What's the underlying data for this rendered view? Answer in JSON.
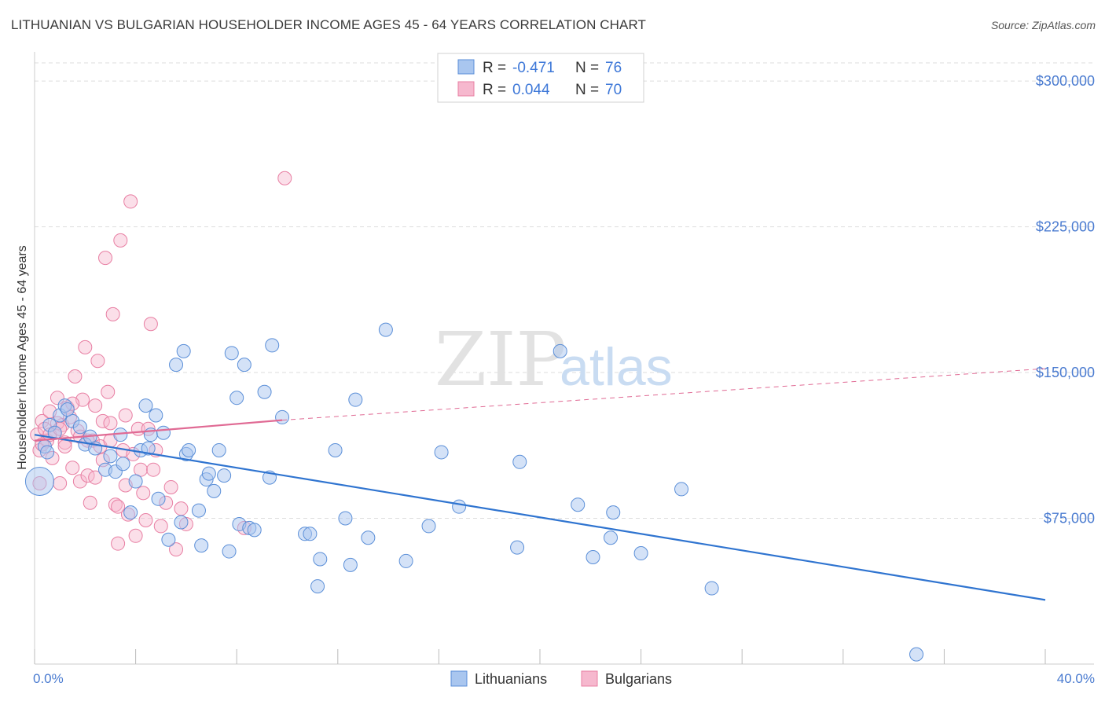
{
  "title": "LITHUANIAN VS BULGARIAN HOUSEHOLDER INCOME AGES 45 - 64 YEARS CORRELATION CHART",
  "source": "Source: ZipAtlas.com",
  "watermark": {
    "zip": "ZIP",
    "atlas": "atlas"
  },
  "colors": {
    "blue_fill": "#a9c6ef",
    "blue_stroke": "#5b8fd8",
    "blue_line": "#2f74d0",
    "pink_fill": "#f6b8ce",
    "pink_stroke": "#e87fa3",
    "pink_line": "#e06a94",
    "grid": "#dddddd",
    "axis_label": "#4a7bd0"
  },
  "legend": {
    "rows": [
      {
        "r_label": "R =",
        "r_value": "-0.471",
        "n_label": "N =",
        "n_value": "76"
      },
      {
        "r_label": "R =",
        "r_value": "0.044",
        "n_label": "N =",
        "n_value": "70"
      }
    ]
  },
  "bottom_legend": {
    "series1": "Lithuanians",
    "series2": "Bulgarians"
  },
  "chart_data": {
    "type": "scatter",
    "title": "LITHUANIAN VS BULGARIAN HOUSEHOLDER INCOME AGES 45 - 64 YEARS CORRELATION CHART",
    "xlabel": "",
    "ylabel": "Householder Income Ages 45 - 64 years",
    "xlim": [
      0,
      40
    ],
    "ylim": [
      0,
      315000
    ],
    "x_tick_labels": [
      "0.0%",
      "40.0%"
    ],
    "y_ticks": [
      75000,
      150000,
      225000,
      300000
    ],
    "y_tick_labels": [
      "$75,000",
      "$150,000",
      "$225,000",
      "$300,000"
    ],
    "grid": true,
    "legend_position": "top-center",
    "series": [
      {
        "name": "Lithuanians",
        "r": -0.471,
        "n": 76,
        "trend": {
          "x": [
            0,
            40
          ],
          "y": [
            118000,
            33000
          ],
          "style": "solid"
        },
        "points": [
          [
            0.2,
            94000
          ],
          [
            0.4,
            112000
          ],
          [
            0.6,
            123000
          ],
          [
            0.8,
            119000
          ],
          [
            1.0,
            128000
          ],
          [
            1.2,
            133000
          ],
          [
            1.5,
            125000
          ],
          [
            1.8,
            122000
          ],
          [
            2.0,
            113000
          ],
          [
            2.2,
            117000
          ],
          [
            2.4,
            111000
          ],
          [
            2.8,
            100000
          ],
          [
            3.0,
            107000
          ],
          [
            3.2,
            99000
          ],
          [
            3.4,
            118000
          ],
          [
            3.5,
            103000
          ],
          [
            3.8,
            78000
          ],
          [
            4.0,
            94000
          ],
          [
            4.2,
            110000
          ],
          [
            4.4,
            133000
          ],
          [
            4.5,
            111000
          ],
          [
            4.6,
            118000
          ],
          [
            4.8,
            128000
          ],
          [
            4.9,
            85000
          ],
          [
            5.1,
            119000
          ],
          [
            5.3,
            64000
          ],
          [
            5.6,
            154000
          ],
          [
            5.8,
            73000
          ],
          [
            5.9,
            161000
          ],
          [
            6.0,
            108000
          ],
          [
            6.1,
            110000
          ],
          [
            6.5,
            79000
          ],
          [
            6.6,
            61000
          ],
          [
            6.8,
            95000
          ],
          [
            6.9,
            98000
          ],
          [
            7.1,
            89000
          ],
          [
            7.3,
            110000
          ],
          [
            7.5,
            97000
          ],
          [
            7.7,
            58000
          ],
          [
            7.8,
            160000
          ],
          [
            8.0,
            137000
          ],
          [
            8.1,
            72000
          ],
          [
            8.3,
            154000
          ],
          [
            8.5,
            70000
          ],
          [
            8.7,
            69000
          ],
          [
            9.1,
            140000
          ],
          [
            9.3,
            96000
          ],
          [
            9.4,
            164000
          ],
          [
            9.8,
            127000
          ],
          [
            10.7,
            67000
          ],
          [
            10.9,
            67000
          ],
          [
            11.2,
            40000
          ],
          [
            11.3,
            54000
          ],
          [
            11.9,
            110000
          ],
          [
            12.3,
            75000
          ],
          [
            12.5,
            51000
          ],
          [
            12.7,
            136000
          ],
          [
            13.2,
            65000
          ],
          [
            13.9,
            172000
          ],
          [
            14.7,
            53000
          ],
          [
            15.6,
            71000
          ],
          [
            16.1,
            109000
          ],
          [
            16.8,
            81000
          ],
          [
            19.1,
            60000
          ],
          [
            19.2,
            104000
          ],
          [
            20.8,
            161000
          ],
          [
            21.5,
            82000
          ],
          [
            22.1,
            55000
          ],
          [
            22.8,
            65000
          ],
          [
            22.9,
            78000
          ],
          [
            24.0,
            57000
          ],
          [
            25.6,
            90000
          ],
          [
            26.8,
            39000
          ],
          [
            34.9,
            5000
          ],
          [
            0.5,
            109000
          ],
          [
            1.3,
            131000
          ]
        ]
      },
      {
        "name": "Bulgarians",
        "r": 0.044,
        "n": 70,
        "trend": {
          "x": [
            0,
            9.8
          ],
          "y": [
            115000,
            125500
          ],
          "dashed_extension_to": [
            40,
            152000
          ]
        },
        "points": [
          [
            0.1,
            118000
          ],
          [
            0.2,
            110000
          ],
          [
            0.3,
            125000
          ],
          [
            0.4,
            121000
          ],
          [
            0.5,
            115000
          ],
          [
            0.6,
            130000
          ],
          [
            0.7,
            106000
          ],
          [
            0.8,
            119000
          ],
          [
            0.9,
            137000
          ],
          [
            1.0,
            93000
          ],
          [
            1.1,
            123000
          ],
          [
            1.2,
            114000
          ],
          [
            1.3,
            132000
          ],
          [
            1.4,
            127000
          ],
          [
            1.5,
            101000
          ],
          [
            1.6,
            148000
          ],
          [
            1.7,
            120000
          ],
          [
            1.8,
            94000
          ],
          [
            1.9,
            136000
          ],
          [
            2.0,
            163000
          ],
          [
            2.1,
            97000
          ],
          [
            2.2,
            83000
          ],
          [
            2.3,
            115000
          ],
          [
            2.4,
            133000
          ],
          [
            2.5,
            156000
          ],
          [
            2.6,
            112000
          ],
          [
            2.7,
            125000
          ],
          [
            2.8,
            209000
          ],
          [
            2.9,
            140000
          ],
          [
            3.0,
            115000
          ],
          [
            3.1,
            180000
          ],
          [
            3.2,
            82000
          ],
          [
            3.3,
            62000
          ],
          [
            3.4,
            218000
          ],
          [
            3.5,
            110000
          ],
          [
            3.6,
            92000
          ],
          [
            3.7,
            77000
          ],
          [
            3.8,
            238000
          ],
          [
            3.9,
            108000
          ],
          [
            4.0,
            66000
          ],
          [
            4.1,
            121000
          ],
          [
            4.2,
            100000
          ],
          [
            4.3,
            88000
          ],
          [
            4.4,
            74000
          ],
          [
            4.5,
            121000
          ],
          [
            4.6,
            175000
          ],
          [
            4.7,
            100000
          ],
          [
            4.8,
            110000
          ],
          [
            5.0,
            71000
          ],
          [
            5.2,
            83000
          ],
          [
            5.4,
            91000
          ],
          [
            5.6,
            59000
          ],
          [
            5.8,
            80000
          ],
          [
            6.0,
            72000
          ],
          [
            8.3,
            70000
          ],
          [
            9.9,
            250000
          ],
          [
            0.3,
            113000
          ],
          [
            0.6,
            118000
          ],
          [
            0.9,
            124000
          ],
          [
            1.2,
            112000
          ],
          [
            1.5,
            134000
          ],
          [
            1.8,
            117000
          ],
          [
            2.1,
            115000
          ],
          [
            2.4,
            96000
          ],
          [
            2.7,
            105000
          ],
          [
            3.0,
            124000
          ],
          [
            3.3,
            81000
          ],
          [
            3.6,
            128000
          ],
          [
            0.2,
            93000
          ],
          [
            1.0,
            121000
          ]
        ]
      }
    ]
  }
}
